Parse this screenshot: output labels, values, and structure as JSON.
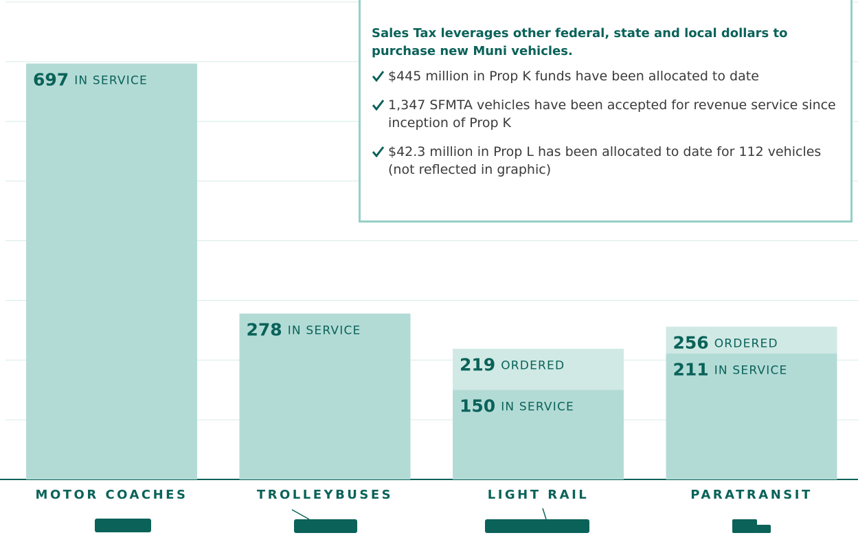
{
  "chart_data": {
    "type": "bar",
    "categories": [
      "MOTOR COACHES",
      "TROLLEYBUSES",
      "LIGHT RAIL",
      "PARATRANSIT"
    ],
    "series": [
      {
        "name": "IN SERVICE",
        "color": "#b3dbd6",
        "values": [
          697,
          278,
          150,
          211
        ]
      },
      {
        "name": "ORDERED",
        "color": "#d0e9e5",
        "values": [
          null,
          null,
          219,
          256
        ]
      }
    ],
    "ylim": [
      0,
      800
    ],
    "yticks": [
      0,
      100,
      200,
      300,
      400,
      500,
      600,
      700,
      800
    ],
    "grid": true
  },
  "info_box": {
    "title": "Sales Tax leverages other federal, state and local dollars to purchase new Muni vehicles.",
    "bullets": [
      "$445 million in Prop K funds have been allocated to date",
      "1,347 SFMTA vehicles have been accepted for revenue service since inception of Prop K",
      "$42.3 million in Prop L has been allocated to date for 112 vehicles (not reflected in graphic)"
    ]
  }
}
